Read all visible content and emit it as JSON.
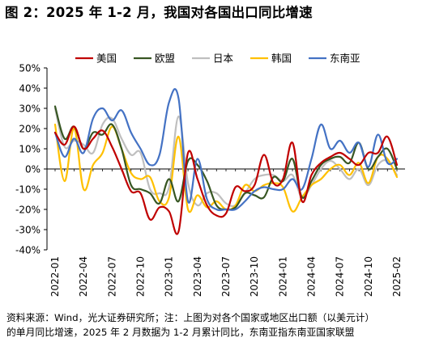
{
  "title": "图 2：2025 年 1-2 月，我国对各国出口同比增速",
  "source_lines": [
    "资料来源：Wind，光大证券研究所；注：上图为对各个国家或地区出口额（以美元计）",
    "的单月同比增速，2025 年 2 月数据为 1-2 月累计同比，东南亚指东南亚国家联盟"
  ],
  "colors": {
    "美国": "#c00000",
    "欧盟": "#375623",
    "日本": "#bfbfbf",
    "韩国": "#ffc000",
    "东南亚": "#4472c4"
  },
  "chart_data": {
    "type": "line",
    "title": "",
    "xlabel": "",
    "ylabel": "",
    "ylim": [
      -40,
      50
    ],
    "yticks": [
      "50%",
      "40%",
      "30%",
      "20%",
      "10%",
      "0%",
      "-10%",
      "-20%",
      "-30%",
      "-40%"
    ],
    "xticks": [
      "2022-01",
      "2022-04",
      "2022-07",
      "2022-10",
      "2023-01",
      "2023-04",
      "2023-07",
      "2023-10",
      "2024-01",
      "2024-04",
      "2024-07",
      "2024-10",
      "2025-02"
    ],
    "grid": false,
    "legend": "top",
    "x": [
      "2022-01",
      "2022-02",
      "2022-03",
      "2022-04",
      "2022-05",
      "2022-06",
      "2022-07",
      "2022-08",
      "2022-09",
      "2022-10",
      "2022-11",
      "2022-12",
      "2023-01",
      "2023-02",
      "2023-03",
      "2023-04",
      "2023-05",
      "2023-06",
      "2023-07",
      "2023-08",
      "2023-09",
      "2023-10",
      "2023-11",
      "2023-12",
      "2024-01",
      "2024-02",
      "2024-03",
      "2024-04",
      "2024-05",
      "2024-06",
      "2024-07",
      "2024-08",
      "2024-09",
      "2024-10",
      "2024-11",
      "2024-12",
      "2025-02"
    ],
    "series": [
      {
        "name": "美国",
        "values": [
          18,
          12,
          21,
          10,
          15,
          19,
          11,
          0,
          -11,
          -12,
          -25,
          -19,
          -21,
          -31,
          8,
          -5,
          -18,
          -23,
          -22,
          -9,
          -11,
          -8,
          7,
          -7,
          -5,
          13,
          -16,
          -3,
          3,
          6,
          8,
          5,
          2,
          8,
          8,
          16,
          2
        ]
      },
      {
        "name": "欧盟",
        "values": [
          31,
          15,
          21,
          10,
          18,
          17,
          22,
          10,
          -8,
          -10,
          -12,
          -17,
          -5,
          -16,
          4,
          2,
          -6,
          -18,
          -20,
          -19,
          -12,
          -13,
          -14,
          -4,
          -6,
          5,
          -14,
          -6,
          2,
          5,
          6,
          3,
          13,
          0,
          6,
          10,
          0
        ]
      },
      {
        "name": "日本",
        "values": [
          30,
          11,
          14,
          12,
          8,
          22,
          25,
          15,
          7,
          8,
          -10,
          -12,
          -9,
          26,
          -7,
          -18,
          -12,
          -12,
          -17,
          -18,
          -12,
          -5,
          -3,
          -3,
          -6,
          -3,
          -14,
          -8,
          0,
          4,
          0,
          -5,
          0,
          -8,
          2,
          4,
          -3
        ]
      },
      {
        "name": "韩国",
        "values": [
          22,
          -6,
          20,
          -10,
          2,
          8,
          21,
          10,
          -2,
          -5,
          -4,
          -16,
          -14,
          16,
          -20,
          -13,
          -19,
          -16,
          -20,
          -18,
          -8,
          -11,
          -8,
          -7,
          -9,
          -21,
          -14,
          -8,
          -5,
          0,
          2,
          -3,
          3,
          -7,
          6,
          5,
          -4
        ]
      },
      {
        "name": "东南亚",
        "values": [
          18,
          6,
          15,
          8,
          25,
          30,
          24,
          29,
          18,
          10,
          2,
          7,
          33,
          35,
          -16,
          5,
          -15,
          -20,
          -20,
          -20,
          -16,
          -11,
          -9,
          -10,
          -10,
          -5,
          -10,
          5,
          22,
          10,
          14,
          8,
          13,
          1,
          17,
          3,
          5
        ]
      }
    ]
  }
}
